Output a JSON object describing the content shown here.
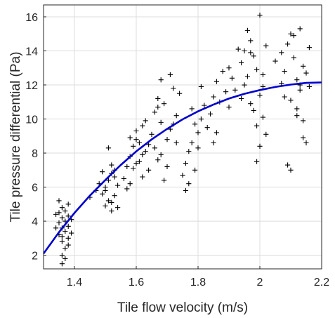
{
  "chart_data": {
    "type": "scatter",
    "title": "",
    "xlabel": "Tile flow velocity (m/s)",
    "ylabel": "Tile  pressure differential (Pa)",
    "xlim": [
      1.3,
      2.2
    ],
    "ylim": [
      1.2,
      16.7
    ],
    "xticks": [
      1.4,
      1.6,
      1.8,
      2.0,
      2.2
    ],
    "xtick_labels": [
      "1.4",
      "1.6",
      "1.8",
      "2",
      "2.2"
    ],
    "yticks": [
      2,
      4,
      6,
      8,
      10,
      12,
      14,
      16
    ],
    "ytick_labels": [
      "2",
      "4",
      "6",
      "8",
      "10",
      "12",
      "14",
      "16"
    ],
    "grid": true,
    "legend": "none",
    "colors": {
      "markers": "#000000",
      "fit": "#0000cc",
      "axis": "#262626",
      "grid": "#dcdcdc"
    },
    "series": [
      {
        "kind": "scatter",
        "marker": "+",
        "points": [
          [
            1.36,
            2.0
          ],
          [
            1.37,
            2.4
          ],
          [
            1.36,
            2.8
          ],
          [
            1.38,
            3.0
          ],
          [
            1.35,
            3.2
          ],
          [
            1.37,
            3.4
          ],
          [
            1.36,
            3.6
          ],
          [
            1.38,
            3.7
          ],
          [
            1.35,
            3.9
          ],
          [
            1.37,
            4.0
          ],
          [
            1.36,
            4.2
          ],
          [
            1.38,
            4.3
          ],
          [
            1.35,
            4.5
          ],
          [
            1.37,
            4.6
          ],
          [
            1.36,
            4.8
          ],
          [
            1.35,
            5.2
          ],
          [
            1.38,
            5.0
          ],
          [
            1.34,
            3.6
          ],
          [
            1.39,
            3.3
          ],
          [
            1.37,
            1.8
          ],
          [
            1.36,
            1.5
          ],
          [
            1.39,
            4.1
          ],
          [
            1.34,
            4.4
          ],
          [
            1.38,
            2.6
          ],
          [
            1.36,
            3.1
          ],
          [
            1.45,
            5.4
          ],
          [
            1.47,
            5.8
          ],
          [
            1.48,
            6.2
          ],
          [
            1.49,
            5.6
          ],
          [
            1.5,
            6.0
          ],
          [
            1.51,
            6.4
          ],
          [
            1.52,
            6.8
          ],
          [
            1.53,
            7.0
          ],
          [
            1.51,
            5.2
          ],
          [
            1.52,
            4.6
          ],
          [
            1.5,
            4.9
          ],
          [
            1.53,
            5.5
          ],
          [
            1.54,
            6.1
          ],
          [
            1.52,
            7.3
          ],
          [
            1.51,
            8.3
          ],
          [
            1.53,
            6.6
          ],
          [
            1.5,
            5.8
          ],
          [
            1.49,
            6.9
          ],
          [
            1.54,
            4.8
          ],
          [
            1.52,
            5.1
          ],
          [
            1.56,
            6.5
          ],
          [
            1.57,
            7.2
          ],
          [
            1.58,
            7.8
          ],
          [
            1.59,
            8.4
          ],
          [
            1.6,
            8.8
          ],
          [
            1.61,
            7.5
          ],
          [
            1.62,
            6.6
          ],
          [
            1.58,
            6.2
          ],
          [
            1.6,
            9.3
          ],
          [
            1.62,
            9.6
          ],
          [
            1.63,
            8.1
          ],
          [
            1.64,
            7.0
          ],
          [
            1.61,
            8.6
          ],
          [
            1.59,
            7.1
          ],
          [
            1.57,
            5.9
          ],
          [
            1.63,
            9.9
          ],
          [
            1.62,
            7.9
          ],
          [
            1.6,
            7.4
          ],
          [
            1.58,
            8.9
          ],
          [
            1.64,
            8.5
          ],
          [
            1.65,
            9.1
          ],
          [
            1.66,
            8.3
          ],
          [
            1.67,
            7.6
          ],
          [
            1.68,
            9.8
          ],
          [
            1.66,
            10.4
          ],
          [
            1.67,
            11.2
          ],
          [
            1.68,
            12.3
          ],
          [
            1.69,
            10.9
          ],
          [
            1.7,
            8.8
          ],
          [
            1.71,
            9.4
          ],
          [
            1.72,
            11.8
          ],
          [
            1.73,
            10.2
          ],
          [
            1.7,
            7.2
          ],
          [
            1.69,
            6.4
          ],
          [
            1.68,
            7.9
          ],
          [
            1.71,
            12.6
          ],
          [
            1.72,
            9.7
          ],
          [
            1.67,
            10.7
          ],
          [
            1.74,
            11.5
          ],
          [
            1.73,
            8.6
          ],
          [
            1.75,
            6.7
          ],
          [
            1.76,
            7.4
          ],
          [
            1.77,
            8.1
          ],
          [
            1.78,
            8.6
          ],
          [
            1.79,
            7.0
          ],
          [
            1.8,
            9.2
          ],
          [
            1.81,
            10.0
          ],
          [
            1.78,
            10.6
          ],
          [
            1.76,
            5.8
          ],
          [
            1.77,
            6.2
          ],
          [
            1.79,
            9.7
          ],
          [
            1.8,
            8.3
          ],
          [
            1.82,
            10.8
          ],
          [
            1.83,
            9.5
          ],
          [
            1.81,
            11.9
          ],
          [
            1.84,
            10.3
          ],
          [
            1.85,
            11.3
          ],
          [
            1.86,
            12.2
          ],
          [
            1.87,
            11.0
          ],
          [
            1.85,
            8.6
          ],
          [
            1.86,
            9.2
          ],
          [
            1.88,
            12.8
          ],
          [
            1.89,
            11.6
          ],
          [
            1.9,
            13.0
          ],
          [
            1.91,
            12.4
          ],
          [
            1.92,
            11.7
          ],
          [
            1.9,
            10.7
          ],
          [
            1.93,
            14.1
          ],
          [
            1.94,
            13.3
          ],
          [
            1.95,
            12.0
          ],
          [
            1.96,
            15.2
          ],
          [
            1.97,
            14.6
          ],
          [
            1.98,
            13.7
          ],
          [
            1.99,
            12.9
          ],
          [
            2.0,
            11.4
          ],
          [
            1.98,
            10.5
          ],
          [
            1.99,
            9.6
          ],
          [
            2.0,
            8.4
          ],
          [
            1.97,
            13.9
          ],
          [
            2.01,
            12.6
          ],
          [
            2.02,
            14.3
          ],
          [
            2.01,
            11.9
          ],
          [
            1.96,
            12.5
          ],
          [
            1.95,
            14.0
          ],
          [
            2.0,
            16.1
          ],
          [
            1.99,
            7.5
          ],
          [
            1.97,
            10.9
          ],
          [
            1.94,
            11.2
          ],
          [
            2.01,
            10.1
          ],
          [
            2.02,
            9.1
          ],
          [
            2.05,
            13.4
          ],
          [
            2.07,
            13.9
          ],
          [
            2.08,
            12.8
          ],
          [
            2.09,
            14.4
          ],
          [
            2.1,
            15.0
          ],
          [
            2.11,
            13.6
          ],
          [
            2.12,
            12.3
          ],
          [
            2.13,
            11.7
          ],
          [
            2.14,
            13.1
          ],
          [
            2.15,
            12.7
          ],
          [
            2.1,
            11.1
          ],
          [
            2.12,
            10.6
          ],
          [
            2.14,
            9.9
          ],
          [
            2.11,
            14.9
          ],
          [
            2.13,
            15.3
          ],
          [
            2.08,
            11.3
          ],
          [
            2.16,
            11.9
          ],
          [
            2.09,
            7.3
          ],
          [
            2.1,
            7.0
          ],
          [
            2.14,
            8.9
          ],
          [
            2.15,
            8.6
          ],
          [
            2.12,
            10.2
          ],
          [
            2.07,
            12.1
          ],
          [
            2.16,
            14.2
          ],
          [
            2.13,
            12.0
          ]
        ]
      },
      {
        "kind": "fit-curve",
        "points": [
          [
            1.3,
            2.1
          ],
          [
            1.35,
            3.35
          ],
          [
            1.4,
            4.48
          ],
          [
            1.45,
            5.5
          ],
          [
            1.5,
            6.42
          ],
          [
            1.55,
            7.3
          ],
          [
            1.6,
            8.1
          ],
          [
            1.65,
            8.8
          ],
          [
            1.7,
            9.42
          ],
          [
            1.75,
            9.98
          ],
          [
            1.8,
            10.45
          ],
          [
            1.85,
            10.85
          ],
          [
            1.9,
            11.2
          ],
          [
            1.95,
            11.48
          ],
          [
            2.0,
            11.7
          ],
          [
            2.05,
            11.88
          ],
          [
            2.1,
            12.02
          ],
          [
            2.15,
            12.12
          ],
          [
            2.2,
            12.15
          ]
        ]
      }
    ]
  }
}
